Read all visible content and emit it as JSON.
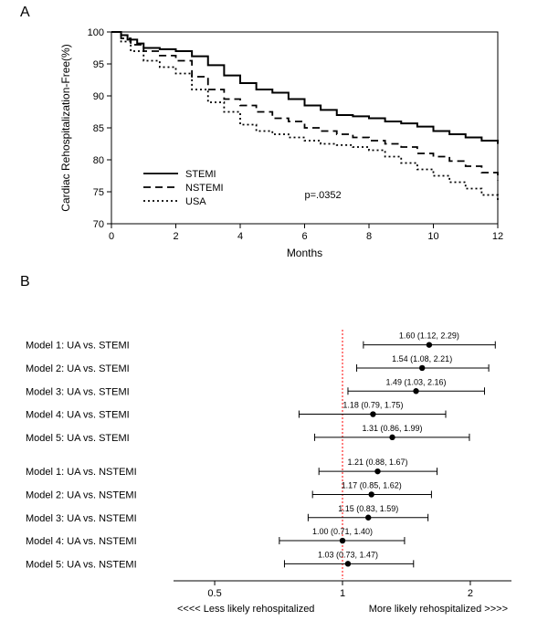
{
  "panelA": {
    "label": "A",
    "type": "line",
    "xlabel": "Months",
    "ylabel": "Cardiac Rehospitalization-Free(%)",
    "xlim": [
      0,
      12
    ],
    "ylim": [
      70,
      100
    ],
    "xtick_step": 2,
    "ytick_step": 5,
    "background_color": "#ffffff",
    "axis_color": "#000000",
    "label_fontsize": 12,
    "tick_fontsize": 11,
    "p_text": "p=.0352",
    "legend": {
      "items": [
        "STEMI",
        "NSTEMI",
        "USA"
      ],
      "fontsize": 11
    },
    "series": [
      {
        "name": "STEMI",
        "dash": "none",
        "color": "#000000",
        "width": 2,
        "x": [
          0,
          0.3,
          0.5,
          0.8,
          1,
          1.5,
          2,
          2.5,
          3,
          3.5,
          4,
          4.5,
          5,
          5.5,
          6,
          6.5,
          7,
          7.5,
          8,
          8.5,
          9,
          9.5,
          10,
          10.5,
          11,
          11.5,
          12
        ],
        "y": [
          100,
          99.5,
          98.8,
          98.2,
          97.5,
          97.3,
          97,
          96.2,
          94.8,
          93.2,
          92,
          91,
          90.5,
          89.5,
          88.5,
          87.8,
          87,
          86.8,
          86.5,
          86,
          85.7,
          85.2,
          84.5,
          84,
          83.5,
          83,
          82.5
        ]
      },
      {
        "name": "NSTEMI",
        "dash": "8,5",
        "color": "#000000",
        "width": 1.8,
        "x": [
          0,
          0.3,
          0.6,
          1,
          1.5,
          2,
          2.5,
          3,
          3.5,
          4,
          4.5,
          5,
          5.5,
          6,
          6.5,
          7,
          7.5,
          8,
          8.5,
          9,
          9.5,
          10,
          10.5,
          11,
          11.5,
          12
        ],
        "y": [
          100,
          99,
          98,
          97,
          96.3,
          95.5,
          93,
          91,
          89.5,
          88.5,
          87.5,
          86.5,
          86,
          85,
          84.5,
          84,
          83.5,
          83,
          82.5,
          82,
          81,
          80.5,
          79.8,
          79,
          78,
          76.8
        ]
      },
      {
        "name": "USA",
        "dash": "2,3",
        "color": "#000000",
        "width": 1.8,
        "x": [
          0,
          0.3,
          0.6,
          1,
          1.5,
          2,
          2.5,
          3,
          3.5,
          4,
          4.5,
          5,
          5.5,
          6,
          6.5,
          7,
          7.5,
          8,
          8.5,
          9,
          9.5,
          10,
          10.5,
          11,
          11.5,
          12
        ],
        "y": [
          100,
          98.5,
          97,
          95.5,
          94.5,
          93.5,
          91,
          89,
          87.5,
          85.5,
          84.5,
          84,
          83.5,
          83,
          82.5,
          82.3,
          82,
          81.5,
          80.5,
          79.5,
          78.5,
          77.5,
          76.5,
          75.5,
          74.5,
          73.5
        ]
      }
    ]
  },
  "panelB": {
    "label": "B",
    "type": "forest",
    "xlabel_left": "<<<< Less likely rehospitalized",
    "xlabel_right": "More likely rehospitalized >>>>",
    "xscale": "log",
    "xlim": [
      0.4,
      2.5
    ],
    "xticks": [
      0.5,
      1,
      2
    ],
    "ref_line": 1,
    "ref_color": "#ff0000",
    "ref_dash": "2,2",
    "point_color": "#000000",
    "point_size": 3.2,
    "ci_color": "#000000",
    "axis_color": "#000000",
    "row_fontsize": 11,
    "value_fontsize": 9,
    "tick_fontsize": 11,
    "label_fontsize": 11,
    "rows": [
      {
        "label": "Model 1:  UA vs. STEMI",
        "est": 1.6,
        "lo": 1.12,
        "hi": 2.29,
        "text": "1.60 (1.12, 2.29)"
      },
      {
        "label": "Model 2:  UA vs. STEMI",
        "est": 1.54,
        "lo": 1.08,
        "hi": 2.21,
        "text": "1.54 (1.08, 2.21)"
      },
      {
        "label": "Model 3:  UA vs. STEMI",
        "est": 1.49,
        "lo": 1.03,
        "hi": 2.16,
        "text": "1.49 (1.03, 2.16)"
      },
      {
        "label": "Model 4:  UA vs. STEMI",
        "est": 1.18,
        "lo": 0.79,
        "hi": 1.75,
        "text": "1.18 (0.79, 1.75)"
      },
      {
        "label": "Model 5:  UA vs. STEMI",
        "est": 1.31,
        "lo": 0.86,
        "hi": 1.99,
        "text": "1.31 (0.86, 1.99)"
      },
      {
        "label": "Model 1:  UA vs. NSTEMI",
        "est": 1.21,
        "lo": 0.88,
        "hi": 1.67,
        "text": "1.21 (0.88, 1.67)"
      },
      {
        "label": "Model 2:  UA vs. NSTEMI",
        "est": 1.17,
        "lo": 0.85,
        "hi": 1.62,
        "text": "1.17 (0.85, 1.62)"
      },
      {
        "label": "Model 3:  UA vs. NSTEMI",
        "est": 1.15,
        "lo": 0.83,
        "hi": 1.59,
        "text": "1.15 (0.83, 1.59)"
      },
      {
        "label": "Model 4:  UA vs. NSTEMI",
        "est": 1.0,
        "lo": 0.71,
        "hi": 1.4,
        "text": "1.00 (0.71, 1.40)"
      },
      {
        "label": "Model 5:  UA vs. NSTEMI",
        "est": 1.03,
        "lo": 0.73,
        "hi": 1.47,
        "text": "1.03 (0.73, 1.47)"
      }
    ]
  }
}
